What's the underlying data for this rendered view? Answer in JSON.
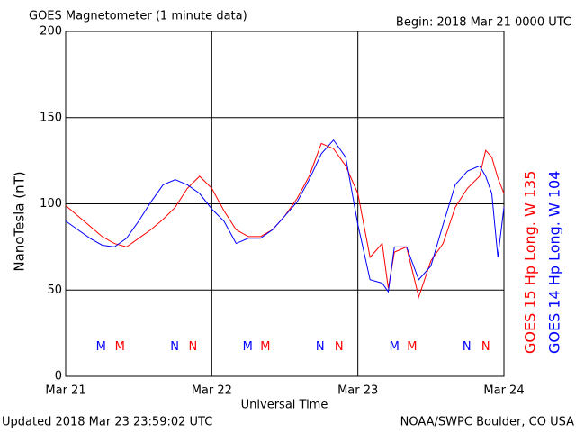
{
  "chart_data": {
    "type": "line",
    "title": "GOES Magnetometer (1 minute data)",
    "subtitle": "Begin:  2018 Mar 21 0000 UTC",
    "ylabel": "NanoTesla (nT)",
    "xlabel": "Universal Time",
    "footer_left": "Updated 2018 Mar 23 23:59:02 UTC",
    "footer_right": "NOAA/SWPC Boulder, CO USA",
    "x": [
      0,
      2,
      4,
      6,
      8,
      10,
      12,
      14,
      16,
      18,
      20,
      22,
      24,
      26,
      28,
      30,
      32,
      34,
      36,
      38,
      40,
      42,
      44,
      46,
      48,
      50,
      52,
      53,
      54,
      56,
      58,
      60,
      62,
      64,
      66,
      68,
      69,
      70,
      71,
      72
    ],
    "series": [
      {
        "name": "GOES 15 Hp  Long. W 135",
        "color": "#ff0000",
        "values": [
          99,
          93,
          87,
          81,
          77,
          75,
          80,
          85,
          91,
          98,
          109,
          116,
          109,
          96,
          85,
          81,
          81,
          85,
          93,
          103,
          116,
          135,
          132,
          122,
          106,
          69,
          77,
          51,
          72,
          75,
          46,
          67,
          77,
          98,
          109,
          116,
          131,
          127,
          115,
          106
        ]
      },
      {
        "name": "GOES 14 Hp  Long. W 104",
        "color": "#0000ff",
        "values": [
          90,
          85,
          80,
          76,
          75,
          80,
          90,
          101,
          111,
          114,
          111,
          106,
          97,
          90,
          77,
          80,
          80,
          85,
          93,
          101,
          114,
          129,
          137,
          127,
          88,
          56,
          54,
          49,
          75,
          75,
          56,
          64,
          88,
          111,
          119,
          122,
          116,
          106,
          69,
          98
        ]
      }
    ],
    "annotations": [
      {
        "text": "M",
        "color": "#0000ff",
        "x": 5.8,
        "y": 17
      },
      {
        "text": "M",
        "color": "#ff0000",
        "x": 8.9,
        "y": 17
      },
      {
        "text": "N",
        "color": "#0000ff",
        "x": 17.9,
        "y": 17
      },
      {
        "text": "N",
        "color": "#ff0000",
        "x": 20.9,
        "y": 17
      },
      {
        "text": "M",
        "color": "#0000ff",
        "x": 29.9,
        "y": 17
      },
      {
        "text": "M",
        "color": "#ff0000",
        "x": 32.8,
        "y": 17
      },
      {
        "text": "N",
        "color": "#0000ff",
        "x": 41.8,
        "y": 17
      },
      {
        "text": "N",
        "color": "#ff0000",
        "x": 44.9,
        "y": 17
      },
      {
        "text": "M",
        "color": "#0000ff",
        "x": 54,
        "y": 17
      },
      {
        "text": "M",
        "color": "#ff0000",
        "x": 56.9,
        "y": 17
      },
      {
        "text": "N",
        "color": "#0000ff",
        "x": 65.9,
        "y": 17
      },
      {
        "text": "N",
        "color": "#ff0000",
        "x": 69,
        "y": 17
      }
    ],
    "xlim": [
      0,
      72
    ],
    "xticks": [
      {
        "value": 0,
        "label": "Mar 21"
      },
      {
        "value": 24,
        "label": "Mar 22"
      },
      {
        "value": 48,
        "label": "Mar 23"
      },
      {
        "value": 72,
        "label": "Mar 24"
      }
    ],
    "ylim": [
      0,
      200
    ],
    "yticks": [
      0,
      50,
      100,
      150,
      200
    ],
    "grid": true
  }
}
